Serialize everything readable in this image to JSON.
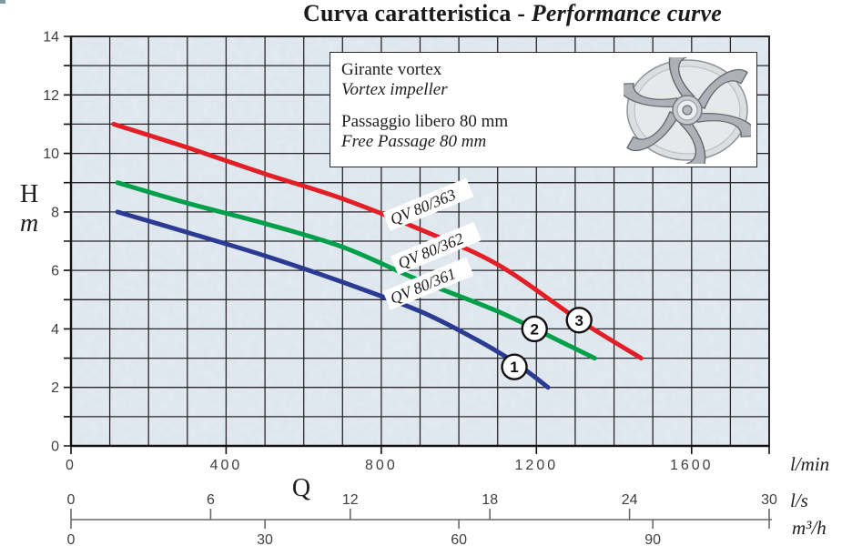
{
  "page_title": {
    "regular": "Curva caratteristica - ",
    "italic": "Performance curve"
  },
  "info_box": {
    "line1_it": "Girante vortex",
    "line1_en": "Vortex impeller",
    "line2_it": "Passaggio libero 80 mm",
    "line2_en": "Free Passage 80 mm",
    "image": "vortex-impeller-drawing"
  },
  "colors": {
    "plot_background": "#dbe4ec",
    "grid_line": "#28282c",
    "axis_line": "#111111",
    "secondary_axis_line": "#6a6a6a",
    "tick_label": "#3f3f41",
    "marker_stroke": "#111111"
  },
  "chart_data": {
    "type": "line",
    "title": "Curva caratteristica - Performance curve",
    "x_axes": [
      {
        "label": "Q",
        "unit": "l/min",
        "range": [
          0,
          1800
        ],
        "ticks": [
          0,
          400,
          800,
          1200,
          1600
        ],
        "grid_step": 100
      },
      {
        "unit": "l/s",
        "range": [
          0,
          30
        ],
        "ticks": [
          0,
          6,
          12,
          18,
          24,
          30
        ]
      },
      {
        "unit": "m³/h",
        "range": [
          0,
          108
        ],
        "ticks": [
          0,
          30,
          60,
          90
        ]
      }
    ],
    "y_axis": {
      "label": "H",
      "unit": "m",
      "range": [
        0,
        14
      ],
      "labeled_ticks": [
        0,
        2,
        4,
        6,
        8,
        10,
        12,
        14
      ],
      "minor_step": 1
    },
    "series": [
      {
        "name": "QV 80/363",
        "color": "#e21f26",
        "points_lmin_m": [
          [
            110,
            11.0
          ],
          [
            300,
            10.2
          ],
          [
            500,
            9.3
          ],
          [
            700,
            8.45
          ],
          [
            900,
            7.4
          ],
          [
            1100,
            6.2
          ],
          [
            1310,
            4.3
          ],
          [
            1470,
            3.0
          ]
        ]
      },
      {
        "name": "QV 80/362",
        "color": "#00a04a",
        "points_lmin_m": [
          [
            120,
            9.0
          ],
          [
            300,
            8.3
          ],
          [
            500,
            7.6
          ],
          [
            700,
            6.8
          ],
          [
            900,
            5.65
          ],
          [
            1100,
            4.6
          ],
          [
            1250,
            3.65
          ],
          [
            1350,
            3.0
          ]
        ]
      },
      {
        "name": "QV 80/361",
        "color": "#2b3a92",
        "points_lmin_m": [
          [
            120,
            8.0
          ],
          [
            300,
            7.3
          ],
          [
            500,
            6.5
          ],
          [
            700,
            5.6
          ],
          [
            900,
            4.6
          ],
          [
            1050,
            3.6
          ],
          [
            1150,
            2.8
          ],
          [
            1230,
            2.0
          ]
        ]
      }
    ],
    "curve_labels": [
      {
        "text": "QV 80/363",
        "q": 830,
        "h": 7.55,
        "angle": -22.5
      },
      {
        "text": "QV 80/362",
        "q": 850,
        "h": 6.05,
        "angle": -22.5
      },
      {
        "text": "QV 80/361",
        "q": 830,
        "h": 4.85,
        "angle": -22.5
      }
    ],
    "point_markers": [
      {
        "label": "1",
        "q": 1143,
        "h": 2.7
      },
      {
        "label": "2",
        "q": 1195,
        "h": 4.0
      },
      {
        "label": "3",
        "q": 1310,
        "h": 4.3
      }
    ],
    "legend_position": "none",
    "grid": true
  }
}
